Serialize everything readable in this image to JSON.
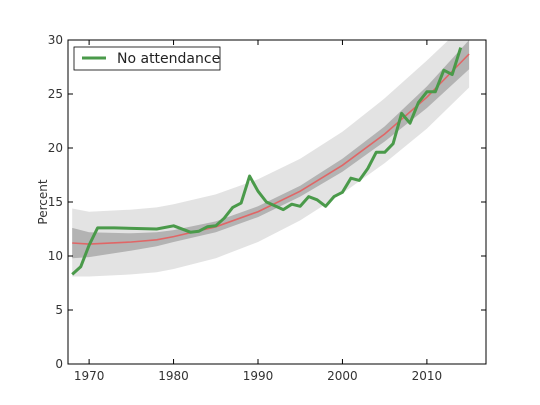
{
  "chart_data": {
    "type": "line",
    "xlabel": "",
    "ylabel": "Percent",
    "xlim": [
      1967.5,
      2017
    ],
    "ylim": [
      0,
      30
    ],
    "xticks": [
      1970,
      1980,
      1990,
      2000,
      2010
    ],
    "yticks": [
      0,
      5,
      10,
      15,
      20,
      25,
      30
    ],
    "legend": {
      "position": "top-left",
      "entries": [
        "No attendance"
      ]
    },
    "grid": false,
    "colors": {
      "observed": "#4a9a4a",
      "fit": "#e06666",
      "inner_band": "#b3b3b3",
      "outer_band": "#e3e3e3"
    },
    "series": [
      {
        "name": "No attendance",
        "x": [
          1968,
          1969,
          1970,
          1971,
          1973,
          1978,
          1980,
          1982,
          1983,
          1984,
          1985,
          1986,
          1987,
          1988,
          1989,
          1990,
          1991,
          1993,
          1994,
          1995,
          1996,
          1997,
          1998,
          1999,
          2000,
          2001,
          2002,
          2003,
          2004,
          2005,
          2006,
          2007,
          2008,
          2009,
          2010,
          2011,
          2012,
          2013,
          2014
        ],
        "y": [
          8.3,
          9.0,
          11.0,
          12.6,
          12.6,
          12.5,
          12.8,
          12.2,
          12.3,
          12.7,
          12.8,
          13.5,
          14.5,
          14.9,
          17.4,
          16.0,
          15.0,
          14.3,
          14.8,
          14.6,
          15.5,
          15.2,
          14.6,
          15.5,
          15.9,
          17.2,
          17.0,
          18.1,
          19.6,
          19.6,
          20.4,
          23.2,
          22.3,
          24.2,
          25.2,
          25.2,
          27.2,
          26.8,
          29.3
        ]
      }
    ],
    "fit": {
      "x": [
        1968,
        1970,
        1975,
        1978,
        1980,
        1985,
        1990,
        1995,
        2000,
        2005,
        2010,
        2015
      ],
      "y": [
        11.2,
        11.1,
        11.3,
        11.5,
        11.8,
        12.7,
        14.1,
        16.0,
        18.4,
        21.3,
        24.7,
        28.7
      ]
    },
    "inner_band": {
      "x": [
        1968,
        1970,
        1975,
        1978,
        1980,
        1985,
        1990,
        1995,
        2000,
        2005,
        2010,
        2015
      ],
      "lower": [
        9.8,
        9.9,
        10.5,
        10.9,
        11.3,
        12.2,
        13.6,
        15.5,
        17.8,
        20.6,
        23.7,
        27.3
      ],
      "upper": [
        12.6,
        12.2,
        12.1,
        12.2,
        12.4,
        13.2,
        14.6,
        16.5,
        19.0,
        22.0,
        25.7,
        30.0
      ]
    },
    "outer_band": {
      "x": [
        1968,
        1970,
        1975,
        1978,
        1980,
        1985,
        1990,
        1995,
        2000,
        2005,
        2010,
        2015
      ],
      "lower": [
        8.1,
        8.1,
        8.3,
        8.5,
        8.8,
        9.8,
        11.3,
        13.3,
        15.8,
        18.6,
        21.8,
        25.6
      ],
      "upper": [
        14.4,
        14.1,
        14.3,
        14.5,
        14.8,
        15.7,
        17.1,
        19.0,
        21.5,
        24.6,
        28.1,
        31.8
      ]
    }
  }
}
